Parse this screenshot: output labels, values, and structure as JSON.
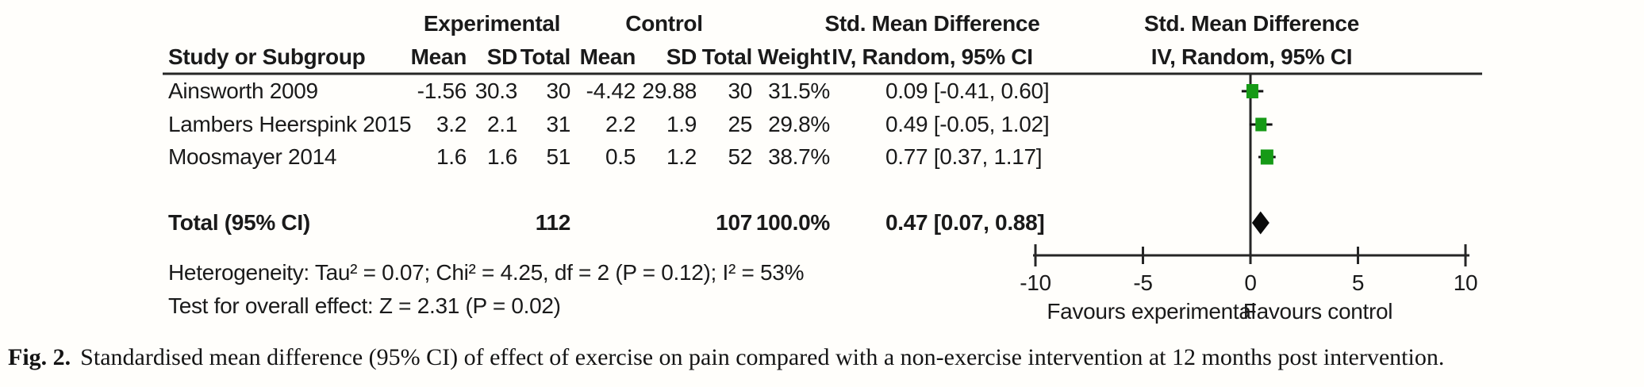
{
  "figure": {
    "header": {
      "experimental": "Experimental",
      "control": "Control",
      "smd_line1": "Std. Mean Difference",
      "smd_line2": "IV, Random, 95% CI",
      "plot_line1": "Std. Mean Difference",
      "plot_line2": "IV, Random, 95% CI",
      "study": "Study or Subgroup",
      "mean_e": "Mean",
      "sd_e": "SD",
      "total_e": "Total",
      "mean_c": "Mean",
      "sd_c": "SD",
      "total_c": "Total",
      "weight": "Weight"
    },
    "footer": {
      "heterogeneity": "Heterogeneity: Tau² = 0.07; Chi² = 4.25, df = 2 (P = 0.12); I² = 53%",
      "overall_effect": "Test for overall effect: Z = 2.31 (P = 0.02)"
    }
  },
  "chart_data": {
    "type": "forest_plot",
    "effect_measure": "Std. Mean Difference (IV, Random, 95% CI)",
    "studies": [
      {
        "name": "Ainsworth 2009",
        "mean_e": "-1.56",
        "sd_e": "30.3",
        "total_e": "30",
        "mean_c": "-4.42",
        "sd_c": "29.88",
        "total_c": "30",
        "weight": "31.5%",
        "ci_text": "0.09 [-0.41, 0.60]",
        "smd": 0.09,
        "ci_low": -0.41,
        "ci_high": 0.6,
        "weight_pct": 31.5
      },
      {
        "name": "Lambers Heerspink 2015",
        "mean_e": "3.2",
        "sd_e": "2.1",
        "total_e": "31",
        "mean_c": "2.2",
        "sd_c": "1.9",
        "total_c": "25",
        "weight": "29.8%",
        "ci_text": "0.49 [-0.05, 1.02]",
        "smd": 0.49,
        "ci_low": -0.05,
        "ci_high": 1.02,
        "weight_pct": 29.8
      },
      {
        "name": "Moosmayer 2014",
        "mean_e": "1.6",
        "sd_e": "1.6",
        "total_e": "51",
        "mean_c": "0.5",
        "sd_c": "1.2",
        "total_c": "52",
        "weight": "38.7%",
        "ci_text": "0.77 [0.37, 1.17]",
        "smd": 0.77,
        "ci_low": 0.37,
        "ci_high": 1.17,
        "weight_pct": 38.7
      }
    ],
    "total": {
      "label": "Total (95% CI)",
      "total_e": "112",
      "total_c": "107",
      "weight": "100.0%",
      "ci_text": "0.47 [0.07, 0.88]",
      "smd": 0.47,
      "ci_low": 0.07,
      "ci_high": 0.88
    },
    "axis": {
      "min": -10,
      "max": 10,
      "ticks": [
        -10,
        -5,
        0,
        5,
        10
      ],
      "label_left": "Favours experimental",
      "label_right": "Favours control"
    },
    "colors": {
      "square_green": "#169a16",
      "diamond_black": "#0a0a0a",
      "line": "#262626",
      "text": "#1a1a1a"
    }
  },
  "caption": {
    "prefix": "Fig. 2.",
    "text": "Standardised mean difference (95% CI) of effect of exercise on pain compared with a non-exercise intervention at 12 months post intervention."
  }
}
